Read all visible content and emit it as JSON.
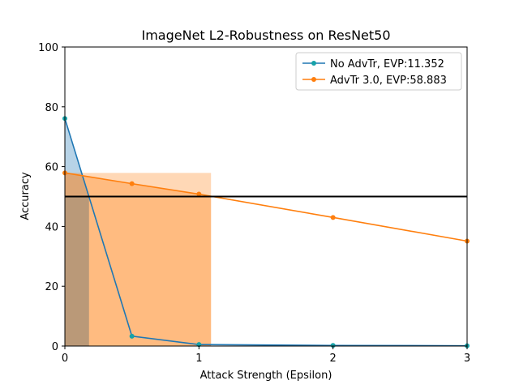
{
  "chart_data": {
    "type": "line",
    "title": "ImageNet L2-Robustness on ResNet50",
    "xlabel": "Attack Strength (Epsilon)",
    "ylabel": "Accuracy",
    "xlim": [
      0,
      3
    ],
    "ylim": [
      0,
      100
    ],
    "xticks": [
      0,
      1,
      2,
      3
    ],
    "yticks": [
      0,
      20,
      40,
      60,
      80,
      100
    ],
    "grid": false,
    "legend_position": "top-right",
    "threshold": 50,
    "series": [
      {
        "name": "No AdvTr, EVP:11.352",
        "color": "#1f77b4",
        "marker_color": "#17a2a8",
        "x": [
          0,
          0.5,
          1,
          2,
          3
        ],
        "y": [
          76.1,
          3.3,
          0.5,
          0.2,
          0.1
        ],
        "shade_x_end": 0.18
      },
      {
        "name": "AdvTr 3.0, EVP:58.883",
        "color": "#ff7f0e",
        "marker_color": "#ff7f0e",
        "x": [
          0,
          0.5,
          1,
          2,
          3
        ],
        "y": [
          57.9,
          54.3,
          50.8,
          43.0,
          35.1
        ],
        "shade_x_end": 1.09
      }
    ]
  }
}
